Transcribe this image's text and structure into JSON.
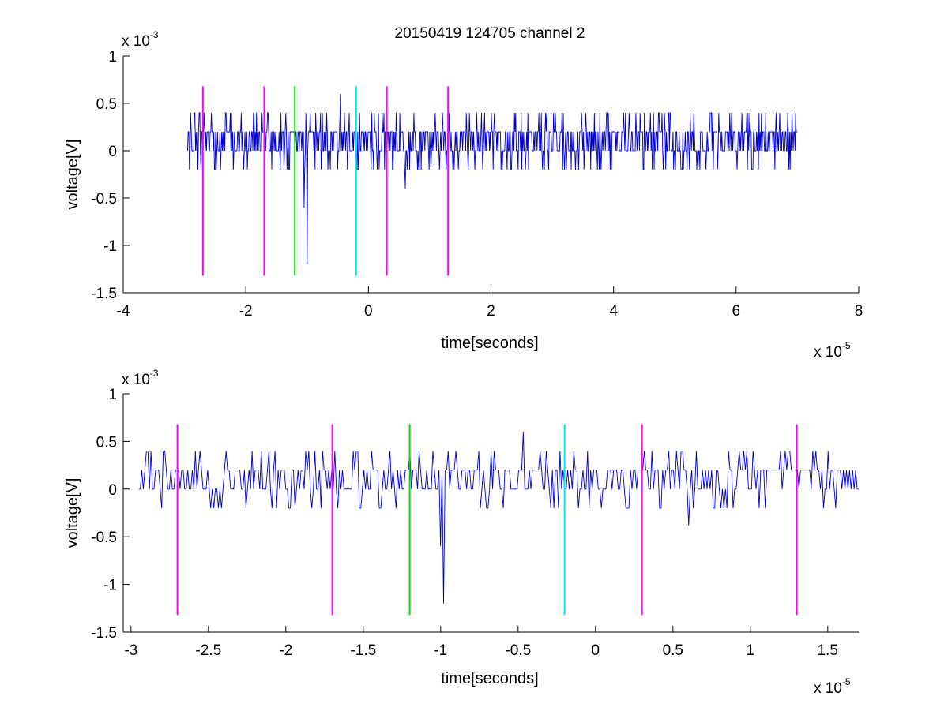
{
  "title": "20150419 124705 channel 2",
  "colors": {
    "signal": "#0000cc",
    "marker_magenta": "#ff00ff",
    "marker_green": "#00dd00",
    "marker_cyan": "#00e5ee",
    "axes": "#000000"
  },
  "chart_data": [
    {
      "type": "line",
      "name": "top-plot",
      "xlabel": "time[seconds]",
      "ylabel": "voltage[V]",
      "x_multiplier": "x 10",
      "x_exponent": "-5",
      "y_multiplier": "x 10",
      "y_exponent": "-3",
      "xlim": [
        -4,
        8
      ],
      "ylim": [
        -1.5,
        1
      ],
      "xticks": [
        -4,
        -2,
        0,
        2,
        4,
        6,
        8
      ],
      "xtick_labels": [
        "-4",
        "-2",
        "0",
        "2",
        "4",
        "6",
        "8"
      ],
      "yticks": [
        -1.5,
        -1,
        -0.5,
        0,
        0.5,
        1
      ],
      "ytick_labels": [
        "-1.5",
        "-1",
        "-0.5",
        "0",
        "0.5",
        "1"
      ],
      "grid": false,
      "signal": {
        "x_range": [
          -2.95,
          7.0
        ],
        "baseline": 0.1,
        "levels": [
          -0.2,
          0,
          0.2,
          0.4
        ],
        "spikes": [
          {
            "x": -1.0,
            "y": -1.2
          },
          {
            "x": -1.05,
            "y": -0.6
          },
          {
            "x": 0.6,
            "y": -0.4
          },
          {
            "x": -0.45,
            "y": 0.6
          }
        ]
      },
      "markers": [
        {
          "x": -2.7,
          "color": "magenta",
          "y_top": 0.68,
          "y_bottom": -1.32
        },
        {
          "x": -1.7,
          "color": "magenta",
          "y_top": 0.68,
          "y_bottom": -1.32
        },
        {
          "x": -1.2,
          "color": "green",
          "y_top": 0.68,
          "y_bottom": -1.32
        },
        {
          "x": -0.2,
          "color": "cyan",
          "y_top": 0.68,
          "y_bottom": -1.32
        },
        {
          "x": 0.3,
          "color": "magenta",
          "y_top": 0.68,
          "y_bottom": -1.32
        },
        {
          "x": 1.3,
          "color": "magenta",
          "y_top": 0.68,
          "y_bottom": -1.32
        }
      ]
    },
    {
      "type": "line",
      "name": "bottom-plot",
      "xlabel": "time[seconds]",
      "ylabel": "voltage[V]",
      "x_multiplier": "x 10",
      "x_exponent": "-5",
      "y_multiplier": "x 10",
      "y_exponent": "-3",
      "xlim": [
        -3.05,
        1.7
      ],
      "ylim": [
        -1.5,
        1
      ],
      "xticks": [
        -3,
        -2.5,
        -2,
        -1.5,
        -1,
        -0.5,
        0,
        0.5,
        1,
        1.5
      ],
      "xtick_labels": [
        "-3",
        "-2.5",
        "-2",
        "-1.5",
        "-1",
        "-0.5",
        "0",
        "0.5",
        "1",
        "1.5"
      ],
      "yticks": [
        -1.5,
        -1,
        -0.5,
        0,
        0.5,
        1
      ],
      "ytick_labels": [
        "-1.5",
        "-1",
        "-0.5",
        "0",
        "0.5",
        "1"
      ],
      "grid": false,
      "signal": {
        "x_range": [
          -2.95,
          1.7
        ],
        "baseline": 0.1,
        "levels": [
          -0.2,
          0,
          0.2,
          0.4
        ],
        "spikes": [
          {
            "x": -0.98,
            "y": -1.2
          },
          {
            "x": -1.0,
            "y": -0.6
          },
          {
            "x": -0.47,
            "y": 0.6
          },
          {
            "x": 0.6,
            "y": -0.38
          }
        ]
      },
      "markers": [
        {
          "x": -2.7,
          "color": "magenta",
          "y_top": 0.68,
          "y_bottom": -1.32
        },
        {
          "x": -1.7,
          "color": "magenta",
          "y_top": 0.68,
          "y_bottom": -1.32
        },
        {
          "x": -1.2,
          "color": "green",
          "y_top": 0.68,
          "y_bottom": -1.32
        },
        {
          "x": -0.2,
          "color": "cyan",
          "y_top": 0.68,
          "y_bottom": -1.32
        },
        {
          "x": 0.3,
          "color": "magenta",
          "y_top": 0.68,
          "y_bottom": -1.32
        },
        {
          "x": 1.3,
          "color": "magenta",
          "y_top": 0.68,
          "y_bottom": -1.32
        }
      ]
    }
  ]
}
